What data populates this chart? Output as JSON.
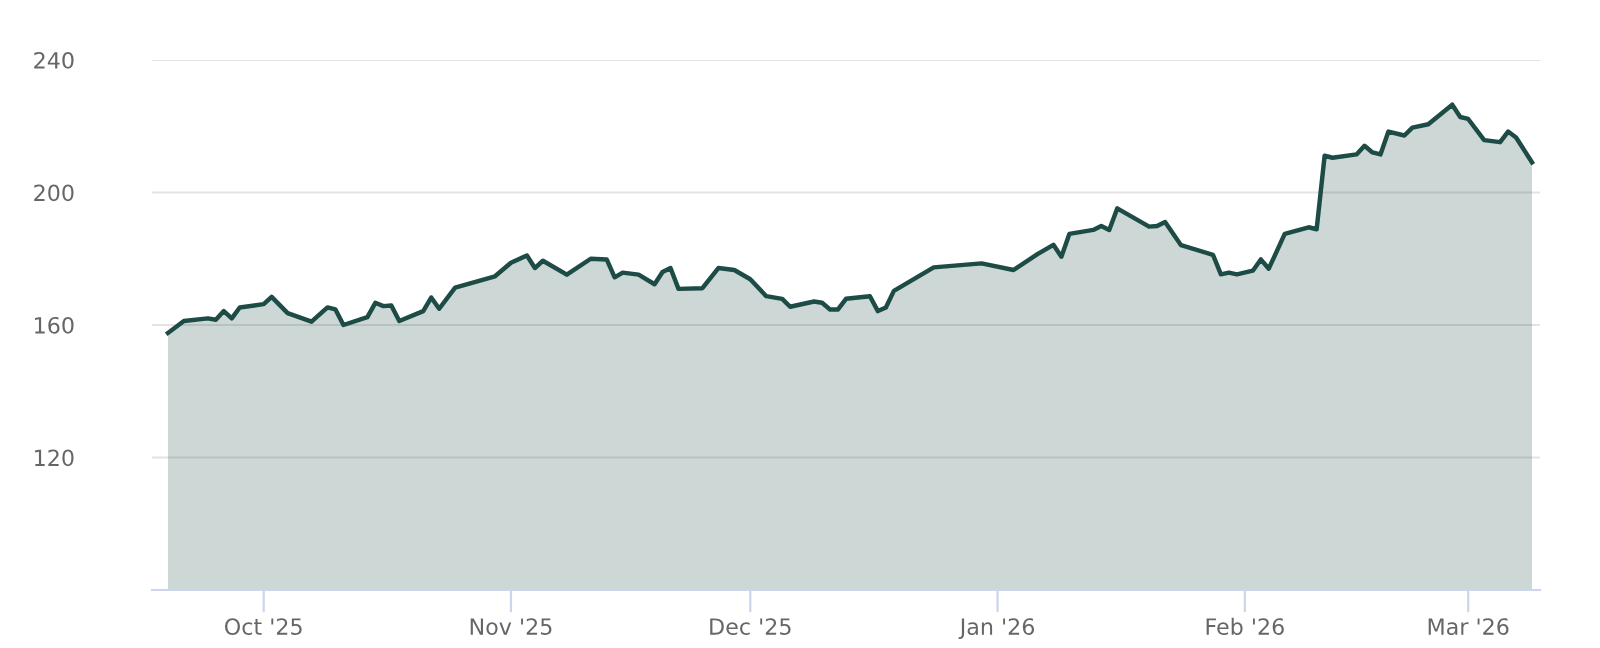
{
  "chart_data": {
    "type": "area",
    "color": "#1d4b45",
    "grid": "y",
    "xlim": [
      "2025-09-17",
      "2026-03-10"
    ],
    "ylim": [
      80,
      240
    ],
    "yticks": [
      120,
      160,
      200,
      240
    ],
    "xticks": [
      {
        "value": "2025-10-01",
        "label": "Oct '25"
      },
      {
        "value": "2025-11-01",
        "label": "Nov '25"
      },
      {
        "value": "2025-12-01",
        "label": "Dec '25"
      },
      {
        "value": "2026-01-01",
        "label": "Jan '26"
      },
      {
        "value": "2026-02-01",
        "label": "Feb '26"
      },
      {
        "value": "2026-03-01",
        "label": "Mar '26"
      }
    ],
    "x": [
      "2025-09-19",
      "2025-09-21",
      "2025-09-24",
      "2025-09-25",
      "2025-09-26",
      "2025-09-27",
      "2025-09-28",
      "2025-10-01",
      "2025-10-02",
      "2025-10-04",
      "2025-10-07",
      "2025-10-09",
      "2025-10-10",
      "2025-10-11",
      "2025-10-14",
      "2025-10-15",
      "2025-10-16",
      "2025-10-17",
      "2025-10-18",
      "2025-10-21",
      "2025-10-22",
      "2025-10-23",
      "2025-10-25",
      "2025-10-30",
      "2025-11-01",
      "2025-11-03",
      "2025-11-04",
      "2025-11-05",
      "2025-11-08",
      "2025-11-11",
      "2025-11-13",
      "2025-11-14",
      "2025-11-15",
      "2025-11-17",
      "2025-11-19",
      "2025-11-20",
      "2025-11-21",
      "2025-11-22",
      "2025-11-25",
      "2025-11-27",
      "2025-11-29",
      "2025-12-01",
      "2025-12-03",
      "2025-12-05",
      "2025-12-06",
      "2025-12-09",
      "2025-12-10",
      "2025-12-11",
      "2025-12-12",
      "2025-12-13",
      "2025-12-16",
      "2025-12-17",
      "2025-12-18",
      "2025-12-19",
      "2025-12-24",
      "2025-12-30",
      "2026-01-03",
      "2026-01-06",
      "2026-01-08",
      "2026-01-09",
      "2026-01-10",
      "2026-01-13",
      "2026-01-14",
      "2026-01-15",
      "2026-01-16",
      "2026-01-20",
      "2026-01-21",
      "2026-01-22",
      "2026-01-24",
      "2026-01-28",
      "2026-01-29",
      "2026-01-30",
      "2026-01-31",
      "2026-02-02",
      "2026-02-03",
      "2026-02-04",
      "2026-02-06",
      "2026-02-09",
      "2026-02-10",
      "2026-02-11",
      "2026-02-12",
      "2026-02-15",
      "2026-02-16",
      "2026-02-17",
      "2026-02-18",
      "2026-02-19",
      "2026-02-21",
      "2026-02-22",
      "2026-02-24",
      "2026-02-27",
      "2026-02-28",
      "2026-03-01",
      "2026-03-03",
      "2026-03-05",
      "2026-03-06",
      "2026-03-07",
      "2026-03-09"
    ],
    "values": [
      157.6,
      161.2,
      162,
      161.6,
      164.2,
      162,
      165.3,
      166.3,
      168.5,
      163.6,
      161,
      165.3,
      164.7,
      160,
      162.4,
      166.7,
      165.7,
      165.9,
      161.2,
      164.2,
      168.3,
      164.9,
      171.3,
      174.7,
      178.8,
      181,
      177.2,
      179.4,
      175.2,
      180,
      179.8,
      174.4,
      175.8,
      175.2,
      172.3,
      176,
      177.2,
      170.9,
      171.1,
      177.2,
      176.6,
      173.8,
      168.7,
      167.9,
      165.5,
      167.1,
      166.7,
      164.7,
      164.7,
      167.9,
      168.7,
      164.2,
      165.3,
      170.3,
      177.4,
      178.6,
      176.6,
      181.4,
      184.2,
      180.6,
      187.5,
      188.7,
      189.9,
      188.7,
      195.2,
      189.7,
      189.9,
      191.1,
      184.1,
      181.2,
      175.3,
      175.8,
      175.3,
      176.4,
      179.8,
      177,
      187.5,
      189.5,
      188.9,
      211.1,
      210.5,
      211.5,
      214.1,
      212.1,
      211.5,
      218.4,
      217.2,
      219.6,
      220.6,
      226.5,
      222.8,
      222.2,
      215.8,
      215.2,
      218.4,
      216.6,
      209.1
    ]
  }
}
